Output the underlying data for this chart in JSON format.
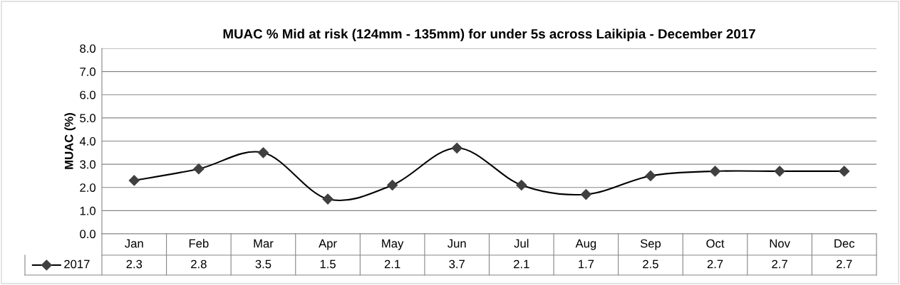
{
  "chart_data": {
    "type": "line",
    "title": "MUAC % Mid at risk (124mm - 135mm) for under 5s across Laikipia - December 2017",
    "ylabel": "MUAC (%)",
    "categories": [
      "Jan",
      "Feb",
      "Mar",
      "Apr",
      "May",
      "Jun",
      "Jul",
      "Aug",
      "Sep",
      "Oct",
      "Nov",
      "Dec"
    ],
    "series": [
      {
        "name": "2017",
        "color": "#404040",
        "values": [
          2.3,
          2.8,
          3.5,
          1.5,
          2.1,
          3.7,
          2.1,
          1.7,
          2.5,
          2.7,
          2.7,
          2.7
        ]
      }
    ],
    "ylim": [
      0,
      8
    ],
    "yticks": [
      {
        "value": 0,
        "label": "0.0"
      },
      {
        "value": 1,
        "label": "1.0"
      },
      {
        "value": 2,
        "label": "2.0"
      },
      {
        "value": 3,
        "label": "3.0"
      },
      {
        "value": 4,
        "label": "4.0"
      },
      {
        "value": 5,
        "label": "5.0"
      },
      {
        "value": 6,
        "label": "6.0"
      },
      {
        "value": 7,
        "label": "7.0"
      },
      {
        "value": 8,
        "label": "8.0"
      }
    ],
    "grid": "y",
    "legend": "bottom",
    "marker": "diamond",
    "line_style": "solid",
    "data_labels": true
  }
}
